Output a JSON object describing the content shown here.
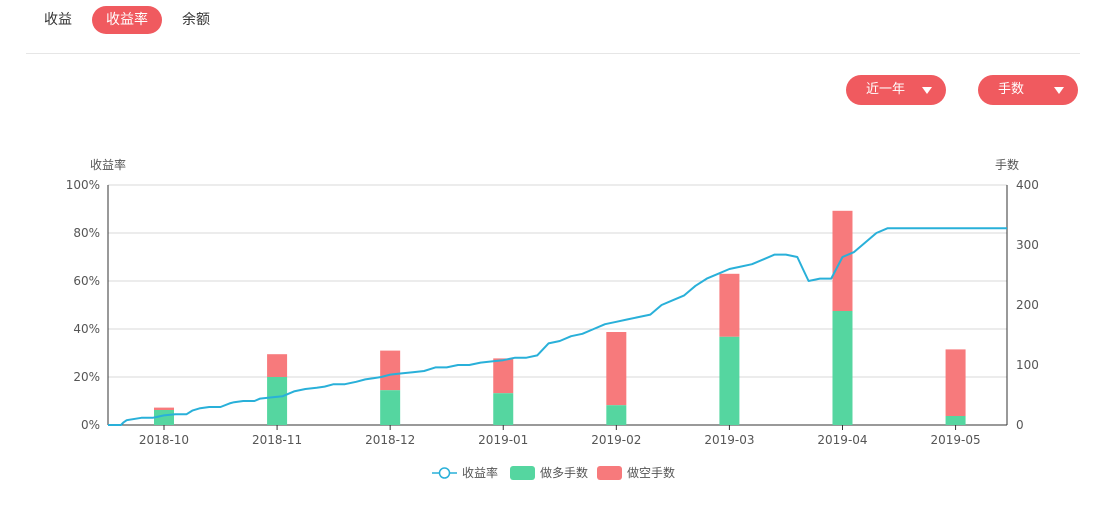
{
  "tabs": [
    {
      "label": "收益",
      "active": false
    },
    {
      "label": "收益率",
      "active": true
    },
    {
      "label": "余额",
      "active": false
    }
  ],
  "filters": {
    "period_label": "近一年",
    "unit_label": "手数"
  },
  "colors": {
    "accent": "#f05a5f",
    "line": "#29b0d9",
    "long": "#55d6a0",
    "short": "#f77a7c",
    "grid": "#d8d8d8"
  },
  "chart_data": {
    "type": "bar",
    "title": "",
    "y_left_label": "收益率",
    "y_right_label": "手数",
    "y_left_ticks": [
      "0%",
      "20%",
      "40%",
      "60%",
      "80%",
      "100%"
    ],
    "y_left_range": [
      0,
      100
    ],
    "y_right_ticks": [
      "0",
      "100",
      "200",
      "300",
      "400"
    ],
    "y_right_range": [
      0,
      400
    ],
    "categories": [
      "2018-10",
      "2018-11",
      "2018-12",
      "2019-01",
      "2019-02",
      "2019-03",
      "2019-04",
      "2019-05"
    ],
    "series": [
      {
        "name": "做多手数",
        "type": "bar",
        "stack": true,
        "values": [
          25,
          80,
          58,
          53,
          33,
          147,
          190,
          15
        ]
      },
      {
        "name": "做空手数",
        "type": "bar",
        "stack": true,
        "values": [
          4,
          38,
          66,
          58,
          122,
          105,
          167,
          111
        ]
      },
      {
        "name": "收益率",
        "type": "line",
        "axis": "left",
        "unit": "%",
        "x": [
          -0.5,
          -0.38,
          -0.36,
          -0.33,
          -0.2,
          -0.1,
          -0.05,
          0,
          0.1,
          0.2,
          0.25,
          0.32,
          0.4,
          0.5,
          0.58,
          0.62,
          0.7,
          0.8,
          0.85,
          0.95,
          1.05,
          1.15,
          1.25,
          1.35,
          1.42,
          1.5,
          1.6,
          1.7,
          1.78,
          1.85,
          1.92,
          2.0,
          2.1,
          2.2,
          2.3,
          2.4,
          2.5,
          2.6,
          2.7,
          2.8,
          2.9,
          3.0,
          3.1,
          3.2,
          3.3,
          3.4,
          3.5,
          3.6,
          3.7,
          3.8,
          3.9,
          4.0,
          4.1,
          4.2,
          4.3,
          4.4,
          4.5,
          4.6,
          4.65,
          4.7,
          4.8,
          4.9,
          5.0,
          5.1,
          5.2,
          5.3,
          5.4,
          5.5,
          5.6,
          5.65,
          5.7,
          5.8,
          5.9,
          6.0,
          6.1,
          6.2,
          6.3,
          6.4,
          6.5,
          6.6,
          6.7,
          6.8,
          6.9,
          6.95,
          7.0,
          7.05,
          7.15,
          7.2,
          7.25,
          7.35,
          7.45,
          7.5
        ],
        "values": [
          0,
          0,
          1,
          2,
          3,
          3,
          3.5,
          4,
          4.5,
          4.5,
          6,
          7,
          7.5,
          7.5,
          9,
          9.5,
          10,
          10,
          11,
          11.5,
          12,
          14,
          15,
          15.5,
          16,
          17,
          17,
          18,
          19,
          19.5,
          20,
          21,
          21.5,
          22,
          22.5,
          24,
          24,
          25,
          25,
          26,
          26.5,
          27,
          28,
          28,
          29,
          34,
          35,
          37,
          38,
          40,
          42,
          43,
          44,
          45,
          46,
          50,
          52,
          54,
          56,
          58,
          61,
          63,
          65,
          66,
          67,
          69,
          71,
          71,
          70,
          65,
          60,
          61,
          61,
          70,
          72,
          76,
          80,
          82,
          82,
          82,
          82,
          82,
          82,
          82,
          82,
          82,
          82,
          82,
          82,
          82,
          82,
          82
        ]
      }
    ],
    "legend": [
      "收益率",
      "做多手数",
      "做空手数"
    ],
    "grid": true,
    "legend_position": "bottom-center"
  }
}
